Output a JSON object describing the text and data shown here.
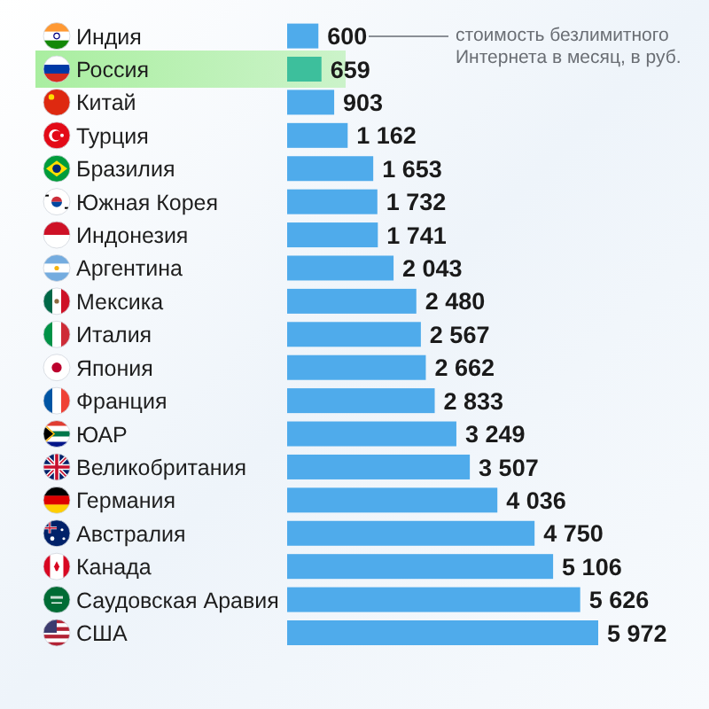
{
  "chart_data": {
    "type": "bar",
    "orientation": "horizontal",
    "categories": [
      "Индия",
      "Россия",
      "Китай",
      "Турция",
      "Бразилия",
      "Южная Корея",
      "Индонезия",
      "Аргентина",
      "Мексика",
      "Италия",
      "Япония",
      "Франция",
      "ЮАР",
      "Великобритания",
      "Германия",
      "Австралия",
      "Канада",
      "Саудовская Аравия",
      "США"
    ],
    "values": [
      600,
      659,
      903,
      1162,
      1653,
      1732,
      1741,
      2043,
      2480,
      2567,
      2662,
      2833,
      3249,
      3507,
      4036,
      4750,
      5106,
      5626,
      5972
    ],
    "value_labels": [
      "600",
      "659",
      "903",
      "1 162",
      "1 653",
      "1 732",
      "1 741",
      "2 043",
      "2 480",
      "2 567",
      "2 662",
      "2 833",
      "3 249",
      "3 507",
      "4 036",
      "4 750",
      "5 106",
      "5 626",
      "5 972"
    ],
    "colors": [
      "#4fabeb",
      "#3dbf9c",
      "#4fabeb",
      "#4fabeb",
      "#4fabeb",
      "#4fabeb",
      "#4fabeb",
      "#4fabeb",
      "#4fabeb",
      "#4fabeb",
      "#4fabeb",
      "#4fabeb",
      "#4fabeb",
      "#4fabeb",
      "#4fabeb",
      "#4fabeb",
      "#4fabeb",
      "#4fabeb",
      "#4fabeb"
    ],
    "bands": [
      {
        "axis": "y",
        "from": "Россия",
        "to": "Россия",
        "color": "#a9eea0"
      }
    ],
    "annotations": [
      "стоимость безлимитного Интернета в месяц, в руб."
    ]
  }
}
